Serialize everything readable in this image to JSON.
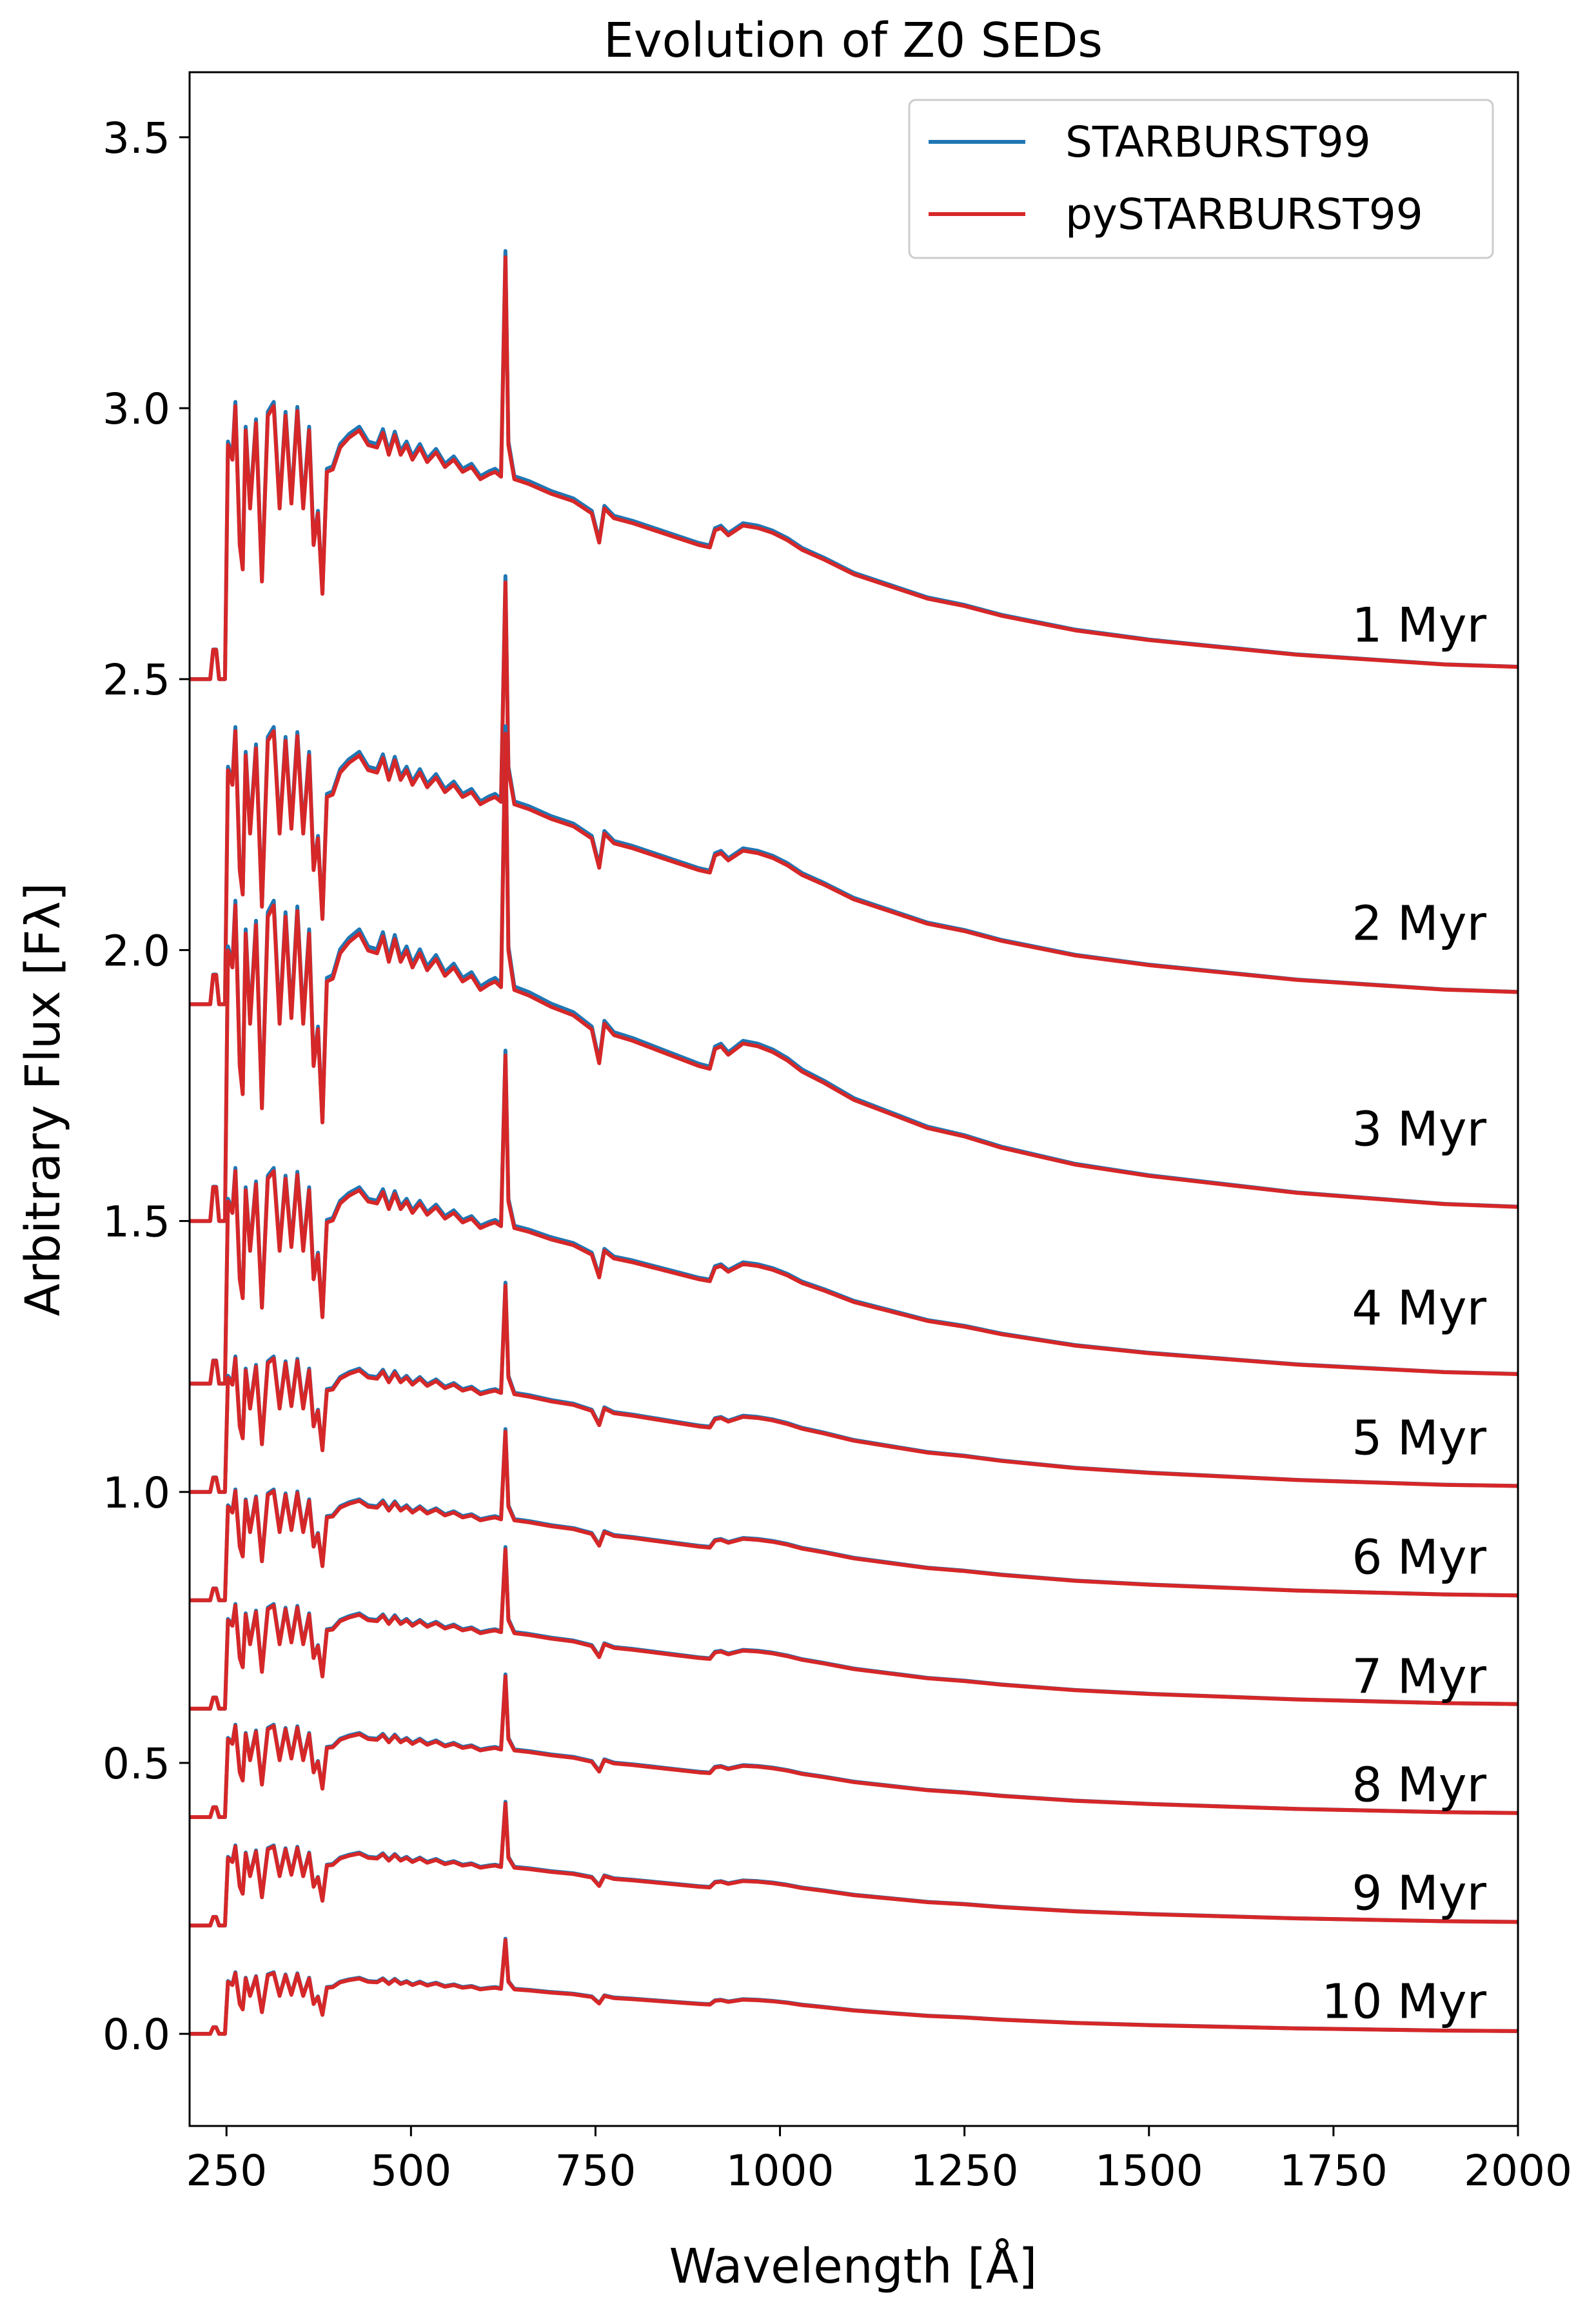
{
  "chart_data": {
    "type": "line",
    "title": "Evolution of Z0 SEDs",
    "xlabel": "Wavelength [Å]",
    "ylabel": "Arbitrary Flux [Fλ]",
    "xlim": [
      200,
      2000
    ],
    "ylim": [
      -0.17,
      3.62
    ],
    "xticks": [
      250,
      500,
      750,
      1000,
      1250,
      1500,
      1750,
      2000
    ],
    "xtick_labels": [
      "250",
      "500",
      "750",
      "1000",
      "1250",
      "1500",
      "1750",
      "2000"
    ],
    "yticks": [
      0.0,
      0.5,
      1.0,
      1.5,
      2.0,
      2.5,
      3.0,
      3.5
    ],
    "ytick_labels": [
      "0.0",
      "0.5",
      "1.0",
      "1.5",
      "2.0",
      "2.5",
      "3.0",
      "3.5"
    ],
    "legend": {
      "position": "top-right",
      "entries": [
        {
          "label": "STARBURST99",
          "color": "#1f77b4"
        },
        {
          "label": "pySTARBURST99",
          "color": "#d62728"
        }
      ]
    },
    "age_labels": [
      {
        "text": "1 Myr",
        "y": 2.6
      },
      {
        "text": "2 Myr",
        "y": 2.05
      },
      {
        "text": "3 Myr",
        "y": 1.67
      },
      {
        "text": "4 Myr",
        "y": 1.34
      },
      {
        "text": "5 Myr",
        "y": 1.1
      },
      {
        "text": "6 Myr",
        "y": 0.88
      },
      {
        "text": "7 Myr",
        "y": 0.66
      },
      {
        "text": "8 Myr",
        "y": 0.46
      },
      {
        "text": "9 Myr",
        "y": 0.26
      },
      {
        "text": "10 Myr",
        "y": 0.06
      }
    ],
    "template": {
      "x": [
        200,
        228,
        232,
        236,
        240,
        248,
        252,
        258,
        262,
        268,
        272,
        276,
        282,
        290,
        298,
        306,
        314,
        322,
        330,
        338,
        346,
        354,
        362,
        368,
        374,
        380,
        386,
        394,
        404,
        416,
        430,
        442,
        454,
        462,
        470,
        478,
        486,
        494,
        502,
        512,
        522,
        534,
        546,
        558,
        570,
        582,
        594,
        606,
        614,
        622,
        628,
        632,
        640,
        660,
        690,
        720,
        745,
        755,
        762,
        775,
        800,
        830,
        860,
        890,
        905,
        912,
        920,
        930,
        950,
        970,
        990,
        1010,
        1030,
        1060,
        1100,
        1150,
        1200,
        1250,
        1300,
        1400,
        1500,
        1600,
        1700,
        1800,
        1900,
        2000
      ],
      "shape": [
        0.0,
        0.0,
        0.12,
        0.12,
        0.0,
        0.0,
        0.96,
        0.9,
        1.12,
        0.55,
        0.45,
        1.02,
        0.7,
        1.05,
        0.4,
        1.08,
        1.12,
        0.7,
        1.08,
        0.72,
        1.1,
        0.7,
        1.02,
        0.55,
        0.68,
        0.35,
        0.85,
        0.86,
        0.95,
        0.99,
        1.02,
        0.96,
        0.95,
        1.01,
        0.92,
        1.0,
        0.92,
        0.96,
        0.9,
        0.95,
        0.89,
        0.93,
        0.87,
        0.9,
        0.85,
        0.87,
        0.82,
        0.84,
        0.85,
        0.83,
        1.73,
        0.96,
        0.82,
        0.8,
        0.76,
        0.73,
        0.68,
        0.56,
        0.7,
        0.66,
        0.64,
        0.61,
        0.58,
        0.55,
        0.54,
        0.61,
        0.62,
        0.59,
        0.63,
        0.62,
        0.6,
        0.57,
        0.53,
        0.49,
        0.43,
        0.38,
        0.33,
        0.3,
        0.26,
        0.2,
        0.16,
        0.13,
        0.1,
        0.08,
        0.06,
        0.05
      ]
    },
    "series_by_age": [
      {
        "age": "1 Myr",
        "baseline": 2.5,
        "amplitude": 0.45
      },
      {
        "age": "2 Myr",
        "baseline": 1.9,
        "amplitude": 0.45
      },
      {
        "age": "3 Myr",
        "baseline": 1.5,
        "amplitude": 0.52
      },
      {
        "age": "4 Myr",
        "baseline": 1.2,
        "amplitude": 0.35
      },
      {
        "age": "5 Myr",
        "baseline": 1.0,
        "amplitude": 0.22
      },
      {
        "age": "6 Myr",
        "baseline": 0.8,
        "amplitude": 0.18
      },
      {
        "age": "7 Myr",
        "baseline": 0.6,
        "amplitude": 0.17
      },
      {
        "age": "8 Myr",
        "baseline": 0.4,
        "amplitude": 0.15
      },
      {
        "age": "9 Myr",
        "baseline": 0.2,
        "amplitude": 0.13
      },
      {
        "age": "10 Myr",
        "baseline": 0.0,
        "amplitude": 0.1
      }
    ]
  }
}
